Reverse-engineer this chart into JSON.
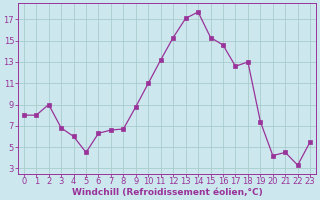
{
  "x": [
    0,
    1,
    2,
    3,
    4,
    5,
    6,
    7,
    8,
    9,
    10,
    11,
    12,
    13,
    14,
    15,
    16,
    17,
    18,
    19,
    20,
    21,
    22,
    23
  ],
  "y": [
    8.0,
    8.0,
    9.0,
    6.8,
    6.0,
    4.5,
    6.3,
    6.6,
    6.7,
    8.8,
    11.0,
    13.2,
    15.3,
    17.1,
    17.7,
    15.3,
    14.6,
    12.6,
    13.0,
    7.4,
    4.2,
    4.5,
    3.3,
    5.5
  ],
  "line_color": "#993399",
  "marker": "s",
  "marker_size": 2.5,
  "bg_color": "#cce8ee",
  "grid_color": "#aacccc",
  "xlabel": "Windchill (Refroidissement éolien,°C)",
  "yticks": [
    3,
    5,
    7,
    9,
    11,
    13,
    15,
    17
  ],
  "xticks": [
    0,
    1,
    2,
    3,
    4,
    5,
    6,
    7,
    8,
    9,
    10,
    11,
    12,
    13,
    14,
    15,
    16,
    17,
    18,
    19,
    20,
    21,
    22,
    23
  ],
  "ylim": [
    2.5,
    18.5
  ],
  "xlim": [
    -0.5,
    23.5
  ],
  "tick_color": "#993399",
  "label_color": "#993399",
  "label_fontsize": 6.5,
  "tick_fontsize": 6,
  "spine_color": "#993399"
}
